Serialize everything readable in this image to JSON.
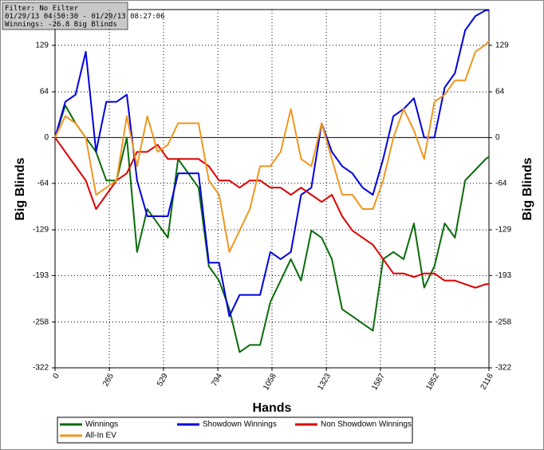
{
  "info": [
    "Filter: No Filter",
    "01/29/13 04:50:30 - 01/29/13 08:27:06",
    "Winnings: -26.8 Big Blinds"
  ],
  "chart_data": {
    "type": "line",
    "xlabel": "Hands",
    "ylabel": "Big Blinds",
    "y2label": "Big Blinds",
    "x": [
      0,
      50,
      100,
      150,
      200,
      250,
      300,
      350,
      400,
      450,
      500,
      550,
      600,
      650,
      700,
      750,
      800,
      850,
      900,
      950,
      1000,
      1050,
      1100,
      1150,
      1200,
      1250,
      1300,
      1350,
      1400,
      1450,
      1500,
      1550,
      1600,
      1650,
      1700,
      1750,
      1800,
      1850,
      1900,
      1950,
      2000,
      2050,
      2100,
      2116
    ],
    "series": [
      {
        "name": "Winnings",
        "color": "#0a6b0a",
        "values": [
          0,
          45,
          20,
          0,
          -20,
          -60,
          -60,
          0,
          -160,
          -100,
          -120,
          -140,
          -30,
          -50,
          -70,
          -180,
          -200,
          -240,
          -300,
          -290,
          -290,
          -230,
          -200,
          -170,
          -200,
          -130,
          -140,
          -170,
          -240,
          -250,
          -260,
          -270,
          -170,
          -160,
          -170,
          -120,
          -210,
          -180,
          -120,
          -140,
          -60,
          -45,
          -30,
          -26.8
        ]
      },
      {
        "name": "Showdown Winnings",
        "color": "#0000dd",
        "values": [
          0,
          50,
          60,
          120,
          -20,
          50,
          50,
          60,
          -60,
          -110,
          -110,
          -110,
          -50,
          -50,
          -50,
          -175,
          -175,
          -250,
          -220,
          -220,
          -220,
          -160,
          -170,
          -160,
          -80,
          -70,
          20,
          -20,
          -40,
          -50,
          -70,
          -80,
          -30,
          30,
          40,
          55,
          0,
          0,
          70,
          90,
          150,
          170,
          178,
          178
        ]
      },
      {
        "name": "Non Showdown Winnings",
        "color": "#dd0000",
        "values": [
          0,
          -20,
          -40,
          -60,
          -100,
          -80,
          -60,
          -50,
          -20,
          -20,
          -10,
          -30,
          -30,
          -30,
          -30,
          -40,
          -60,
          -60,
          -70,
          -60,
          -60,
          -70,
          -70,
          -80,
          -70,
          -80,
          -90,
          -80,
          -110,
          -130,
          -140,
          -150,
          -170,
          -190,
          -190,
          -195,
          -190,
          -190,
          -200,
          -200,
          -205,
          -210,
          -205,
          -205
        ]
      },
      {
        "name": "All-In EV",
        "color": "#f0961e",
        "values": [
          0,
          30,
          20,
          0,
          -80,
          -70,
          -60,
          30,
          -40,
          30,
          -20,
          -10,
          20,
          20,
          20,
          -60,
          -80,
          -160,
          -130,
          -100,
          -40,
          -40,
          -20,
          40,
          -30,
          -40,
          20,
          -30,
          -80,
          -80,
          -100,
          -100,
          -60,
          0,
          40,
          10,
          -30,
          50,
          60,
          80,
          80,
          120,
          130,
          135
        ]
      }
    ],
    "xlim": [
      0,
      2116
    ],
    "ylim": [
      -322,
      179
    ],
    "xticks": [
      0,
      265,
      529,
      794,
      1058,
      1323,
      1587,
      1852,
      2116
    ],
    "yticks": [
      -322,
      -258,
      -193,
      -129,
      -64,
      0,
      64,
      129
    ],
    "grid": true
  }
}
